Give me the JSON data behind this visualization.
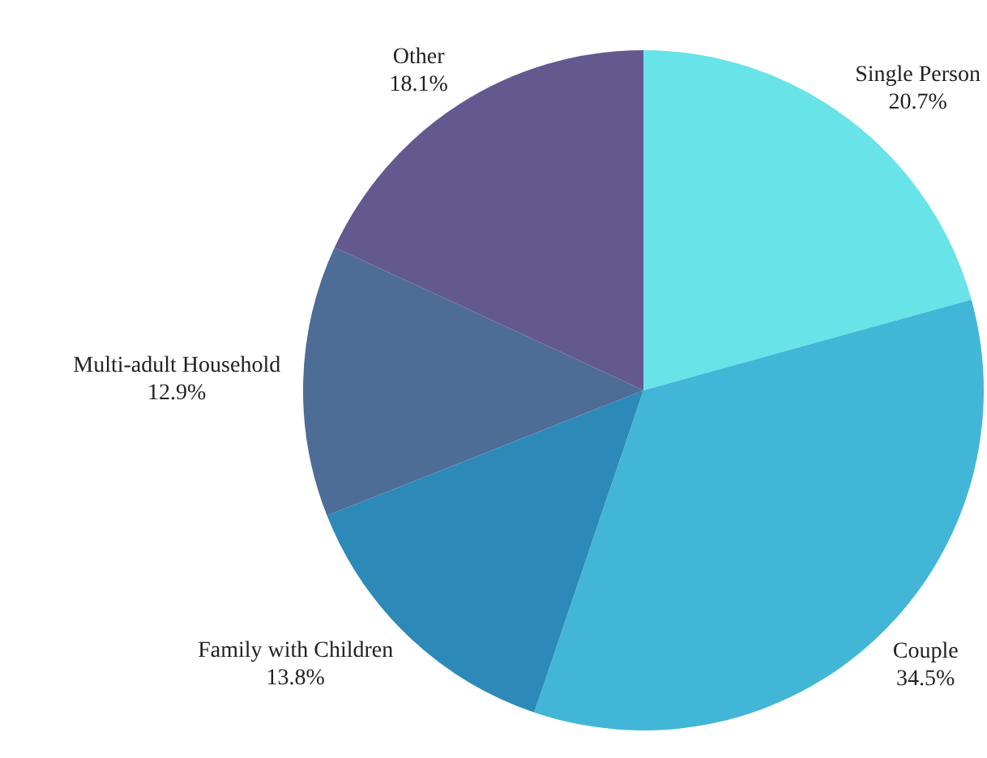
{
  "chart_data": {
    "type": "pie",
    "categories": [
      "Single Person",
      "Couple",
      "Family with Children",
      "Multi-adult Household",
      "Other"
    ],
    "values": [
      20.7,
      34.5,
      13.8,
      12.9,
      18.1
    ],
    "value_labels": [
      "20.7%",
      "34.5%",
      "13.8%",
      "12.9%",
      "18.1%"
    ],
    "colors": [
      "#68e3e8",
      "#42b6d6",
      "#2d89b8",
      "#4d6d96",
      "#63598f"
    ],
    "legend": false
  }
}
